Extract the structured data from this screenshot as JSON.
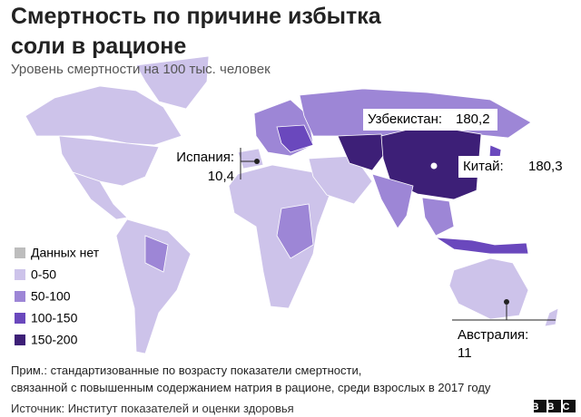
{
  "header": {
    "title": "Смертность по причине избытка соли в рационе",
    "subtitle": "Уровень смертности на 100 тыс. человек"
  },
  "legend": [
    {
      "label": "Данных нет",
      "color": "#bdbdbd"
    },
    {
      "label": "0-50",
      "color": "#cdc3ea"
    },
    {
      "label": "50-100",
      "color": "#9d86d6"
    },
    {
      "label": "100-150",
      "color": "#6a48bd"
    },
    {
      "label": "150-200",
      "color": "#3d1f77"
    }
  ],
  "callouts": [
    {
      "name": "Испания:",
      "value": "10,4"
    },
    {
      "name": "Узбекистан:",
      "value": "180,2"
    },
    {
      "name": "Китай:",
      "value": "180,3"
    },
    {
      "name": "Австралия:",
      "value": "11"
    }
  ],
  "note": [
    "Прим.: стандартизованные по возрасту показатели смертности,",
    "связанной с повышенным содержанием натрия в рационе, среди взрослых в 2017 году"
  ],
  "source": "Источник: Институт показателей и оценки здоровья",
  "logo": "BBC"
}
